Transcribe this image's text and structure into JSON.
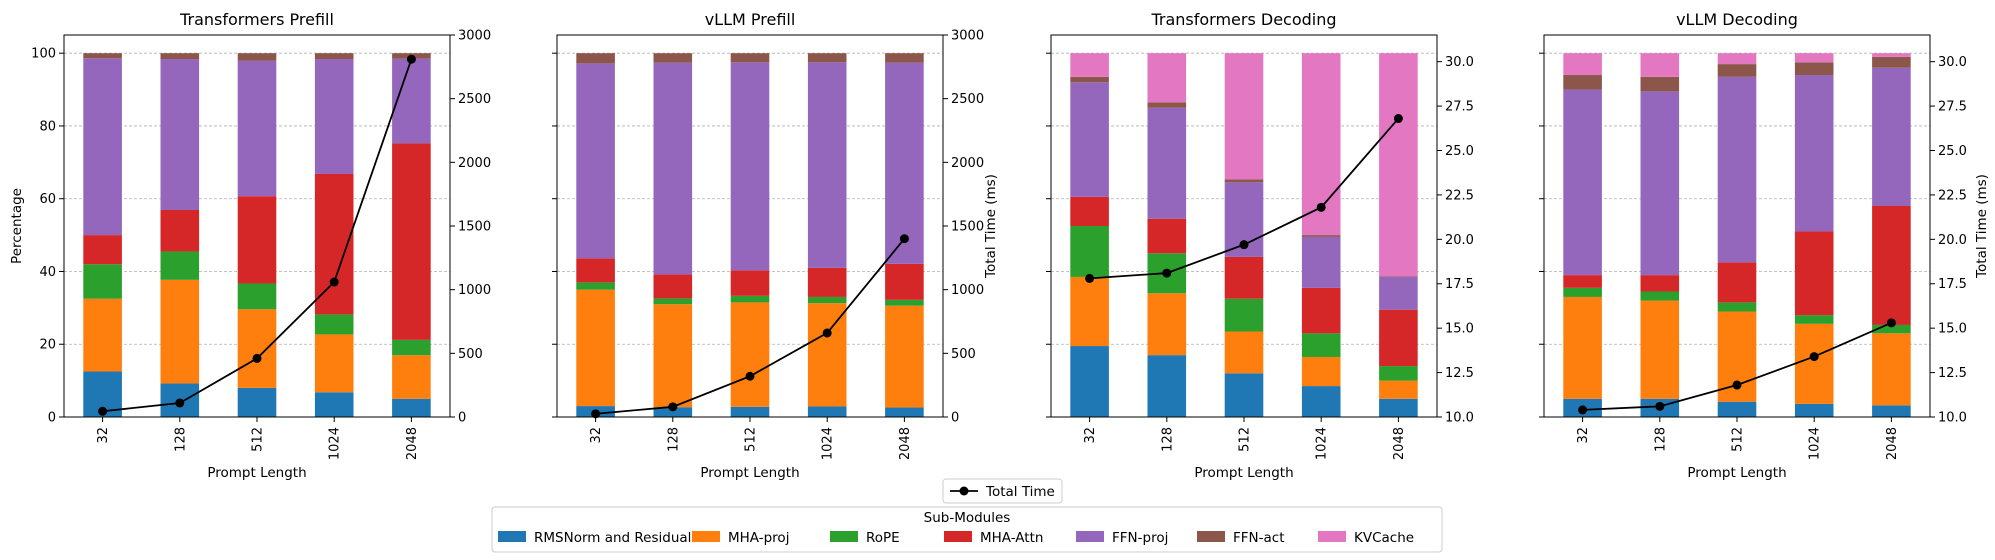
{
  "legend": {
    "title": "Sub-Modules",
    "total_time_label": "Total Time"
  },
  "chart_data": [
    {
      "type": "bar",
      "stacked": true,
      "title": "Transformers Prefill",
      "xlabel": "Prompt Length",
      "ylabel": "Percentage",
      "y2label": "",
      "categories": [
        "32",
        "128",
        "512",
        "1024",
        "2048"
      ],
      "ylim": [
        0,
        105
      ],
      "yticks": [
        0,
        20,
        40,
        60,
        80,
        100
      ],
      "y2lim": [
        0,
        3000
      ],
      "y2ticks": [
        0,
        500,
        1000,
        1500,
        2000,
        2500,
        3000
      ],
      "y2tick_decimals": 0,
      "grid": "horizontal dashed",
      "series": [
        {
          "name": "RMSNorm and Residual",
          "color": "#1f77b4",
          "values": [
            12.5,
            9.2,
            8.0,
            6.8,
            5.0
          ]
        },
        {
          "name": "MHA-proj",
          "color": "#ff7f0e",
          "values": [
            20.0,
            28.5,
            21.6,
            15.9,
            12.0
          ]
        },
        {
          "name": "RoPE",
          "color": "#2ca02c",
          "values": [
            9.5,
            7.8,
            7.1,
            5.5,
            4.2
          ]
        },
        {
          "name": "MHA-Attn",
          "color": "#d62728",
          "values": [
            8.0,
            11.4,
            24.0,
            38.6,
            54.0
          ]
        },
        {
          "name": "FFN-proj",
          "color": "#9467bd",
          "values": [
            48.6,
            41.5,
            37.2,
            31.6,
            23.3
          ]
        },
        {
          "name": "FFN-act",
          "color": "#8c564b",
          "values": [
            1.4,
            1.6,
            2.1,
            1.6,
            1.5
          ]
        },
        {
          "name": "KVCache",
          "color": "#e377c2",
          "values": [
            0,
            0,
            0,
            0,
            0
          ]
        }
      ],
      "total_time": [
        45,
        110,
        460,
        1060,
        2810
      ]
    },
    {
      "type": "bar",
      "stacked": true,
      "title": "vLLM Prefill",
      "xlabel": "Prompt Length",
      "ylabel": "",
      "y2label": "Total Time (ms)",
      "categories": [
        "32",
        "128",
        "512",
        "1024",
        "2048"
      ],
      "ylim": [
        0,
        105
      ],
      "yticks": [
        0,
        20,
        40,
        60,
        80,
        100
      ],
      "y2lim": [
        0,
        3000
      ],
      "y2ticks": [
        0,
        500,
        1000,
        1500,
        2000,
        2500,
        3000
      ],
      "y2tick_decimals": 0,
      "grid": "horizontal dashed",
      "series": [
        {
          "name": "RMSNorm and Residual",
          "color": "#1f77b4",
          "values": [
            3.0,
            2.7,
            2.8,
            2.9,
            2.6
          ]
        },
        {
          "name": "MHA-proj",
          "color": "#ff7f0e",
          "values": [
            32.0,
            28.3,
            28.7,
            28.4,
            28.0
          ]
        },
        {
          "name": "RoPE",
          "color": "#2ca02c",
          "values": [
            2.0,
            1.6,
            1.8,
            1.7,
            1.6
          ]
        },
        {
          "name": "MHA-Attn",
          "color": "#d62728",
          "values": [
            6.6,
            6.6,
            7.0,
            8.0,
            9.9
          ]
        },
        {
          "name": "FFN-proj",
          "color": "#9467bd",
          "values": [
            53.6,
            58.2,
            57.2,
            56.5,
            55.3
          ]
        },
        {
          "name": "FFN-act",
          "color": "#8c564b",
          "values": [
            2.8,
            2.6,
            2.5,
            2.5,
            2.6
          ]
        },
        {
          "name": "KVCache",
          "color": "#e377c2",
          "values": [
            0,
            0,
            0,
            0,
            0
          ]
        }
      ],
      "total_time": [
        25,
        80,
        320,
        660,
        1400
      ]
    },
    {
      "type": "bar",
      "stacked": true,
      "title": "Transformers Decoding",
      "xlabel": "Prompt Length",
      "ylabel": "",
      "y2label": "",
      "categories": [
        "32",
        "128",
        "512",
        "1024",
        "2048"
      ],
      "ylim": [
        0,
        105
      ],
      "yticks": [
        0,
        20,
        40,
        60,
        80,
        100
      ],
      "y2lim": [
        10.0,
        31.5
      ],
      "y2ticks": [
        10.0,
        12.5,
        15.0,
        17.5,
        20.0,
        22.5,
        25.0,
        27.5,
        30.0
      ],
      "y2tick_decimals": 1,
      "grid": "horizontal dashed",
      "series": [
        {
          "name": "RMSNorm and Residual",
          "color": "#1f77b4",
          "values": [
            19.5,
            17.0,
            12.0,
            8.5,
            5.0
          ]
        },
        {
          "name": "MHA-proj",
          "color": "#ff7f0e",
          "values": [
            19.0,
            17.0,
            11.5,
            8.0,
            5.0
          ]
        },
        {
          "name": "RoPE",
          "color": "#2ca02c",
          "values": [
            14.0,
            11.0,
            9.0,
            6.5,
            4.0
          ]
        },
        {
          "name": "MHA-Attn",
          "color": "#d62728",
          "values": [
            8.0,
            9.5,
            11.5,
            12.5,
            15.5
          ]
        },
        {
          "name": "FFN-proj",
          "color": "#9467bd",
          "values": [
            31.5,
            30.5,
            20.5,
            14.0,
            9.0
          ]
        },
        {
          "name": "FFN-act",
          "color": "#8c564b",
          "values": [
            1.5,
            1.5,
            0.8,
            0.5,
            0.2
          ]
        },
        {
          "name": "KVCache",
          "color": "#e377c2",
          "values": [
            6.5,
            13.5,
            34.7,
            50.0,
            61.3
          ]
        }
      ],
      "total_time": [
        17.8,
        18.1,
        19.7,
        21.8,
        26.8
      ]
    },
    {
      "type": "bar",
      "stacked": true,
      "title": "vLLM Decoding",
      "xlabel": "Prompt Length",
      "ylabel": "",
      "y2label": "Total Time (ms)",
      "categories": [
        "32",
        "128",
        "512",
        "1024",
        "2048"
      ],
      "ylim": [
        0,
        105
      ],
      "yticks": [
        0,
        20,
        40,
        60,
        80,
        100
      ],
      "y2lim": [
        10.0,
        31.5
      ],
      "y2ticks": [
        10.0,
        12.5,
        15.0,
        17.5,
        20.0,
        22.5,
        25.0,
        27.5,
        30.0
      ],
      "y2tick_decimals": 1,
      "grid": "horizontal dashed",
      "series": [
        {
          "name": "RMSNorm and Residual",
          "color": "#1f77b4",
          "values": [
            5.0,
            5.0,
            4.2,
            3.6,
            3.2
          ]
        },
        {
          "name": "MHA-proj",
          "color": "#ff7f0e",
          "values": [
            28.0,
            27.0,
            24.8,
            22.0,
            19.8
          ]
        },
        {
          "name": "RoPE",
          "color": "#2ca02c",
          "values": [
            2.5,
            2.5,
            2.5,
            2.4,
            2.3
          ]
        },
        {
          "name": "MHA-Attn",
          "color": "#d62728",
          "values": [
            3.5,
            4.5,
            11.0,
            23.0,
            32.7
          ]
        },
        {
          "name": "FFN-proj",
          "color": "#9467bd",
          "values": [
            51.0,
            50.5,
            51.0,
            43.0,
            38.0
          ]
        },
        {
          "name": "FFN-act",
          "color": "#8c564b",
          "values": [
            4.0,
            4.0,
            3.5,
            3.5,
            3.0
          ]
        },
        {
          "name": "KVCache",
          "color": "#e377c2",
          "values": [
            6.0,
            6.5,
            3.0,
            2.5,
            1.0
          ]
        }
      ],
      "total_time": [
        10.4,
        10.6,
        11.8,
        13.4,
        15.3
      ]
    }
  ]
}
